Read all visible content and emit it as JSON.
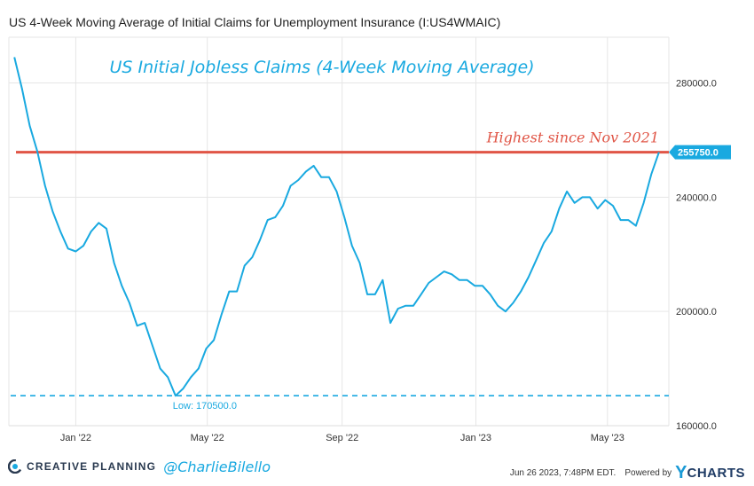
{
  "header": {
    "title": "US 4-Week Moving Average of Initial Claims for Unemployment Insurance (I:US4WMAIC)"
  },
  "annotations": {
    "chart_title": "US Initial Jobless Claims (4-Week Moving Average)",
    "highest_label": "Highest since Nov 2021",
    "current_value_badge": "255750.0",
    "low_label": "Low: 170500.0"
  },
  "footer": {
    "brand_name": "CREATIVE PLANNING",
    "handle": "@CharlieBilello",
    "timestamp": "Jun 26 2023, 7:48PM EDT.",
    "powered_by": "Powered by",
    "ycharts_y": "Y",
    "ycharts_rest": "CHARTS"
  },
  "colors": {
    "series": "#19a9e0",
    "highlight_line": "#e05546",
    "badge": "#19a9e0",
    "grid": "#e6e6e6",
    "axis_text": "#333333"
  },
  "chart_data": {
    "type": "line",
    "title": "US Initial Jobless Claims (4-Week Moving Average)",
    "x_tick_labels": [
      "Jan '22",
      "May '22",
      "Sep '22",
      "Jan '23",
      "May '23"
    ],
    "x_tick_dates": [
      "2022-01-01",
      "2022-05-01",
      "2022-09-01",
      "2023-01-01",
      "2023-05-01"
    ],
    "y_ticks": [
      160000,
      200000,
      240000,
      280000
    ],
    "y_tick_labels": [
      "160000.0",
      "200000.0",
      "240000.0",
      "280000.0"
    ],
    "xlim": [
      "2021-11-01",
      "2023-06-26"
    ],
    "ylim": [
      160000,
      296000
    ],
    "grid": true,
    "reference_lines": [
      {
        "label": "Highest since Nov 2021",
        "value": 255750,
        "style": "solid"
      },
      {
        "label": "Low: 170500.0",
        "value": 170500,
        "style": "dashed"
      }
    ],
    "series": [
      {
        "x": [
          "2021-11-06",
          "2021-11-13",
          "2021-11-20",
          "2021-11-27",
          "2021-12-04",
          "2021-12-11",
          "2021-12-18",
          "2021-12-25",
          "2022-01-01",
          "2022-01-08",
          "2022-01-15",
          "2022-01-22",
          "2022-01-29",
          "2022-02-05",
          "2022-02-12",
          "2022-02-19",
          "2022-02-26",
          "2022-03-05",
          "2022-03-12",
          "2022-03-19",
          "2022-03-26",
          "2022-04-02",
          "2022-04-09",
          "2022-04-16",
          "2022-04-23",
          "2022-04-30",
          "2022-05-07",
          "2022-05-14",
          "2022-05-21",
          "2022-05-28",
          "2022-06-04",
          "2022-06-11",
          "2022-06-18",
          "2022-06-25",
          "2022-07-02",
          "2022-07-09",
          "2022-07-16",
          "2022-07-23",
          "2022-07-30",
          "2022-08-06",
          "2022-08-13",
          "2022-08-20",
          "2022-08-27",
          "2022-09-03",
          "2022-09-10",
          "2022-09-17",
          "2022-09-24",
          "2022-10-01",
          "2022-10-08",
          "2022-10-15",
          "2022-10-22",
          "2022-10-29",
          "2022-11-05",
          "2022-11-12",
          "2022-11-19",
          "2022-11-26",
          "2022-12-03",
          "2022-12-10",
          "2022-12-17",
          "2022-12-24",
          "2022-12-31",
          "2023-01-07",
          "2023-01-14",
          "2023-01-21",
          "2023-01-28",
          "2023-02-04",
          "2023-02-11",
          "2023-02-18",
          "2023-02-25",
          "2023-03-04",
          "2023-03-11",
          "2023-03-18",
          "2023-03-25",
          "2023-04-01",
          "2023-04-08",
          "2023-04-15",
          "2023-04-22",
          "2023-04-29",
          "2023-05-06",
          "2023-05-13",
          "2023-05-20",
          "2023-05-27",
          "2023-06-03",
          "2023-06-10",
          "2023-06-17"
        ],
        "y": [
          289000,
          278000,
          265000,
          256000,
          244000,
          235000,
          228000,
          222000,
          221000,
          223000,
          228000,
          231000,
          229000,
          217000,
          209000,
          203000,
          195000,
          196000,
          188000,
          180000,
          177000,
          170500,
          173000,
          177000,
          180000,
          187000,
          190000,
          199000,
          207000,
          207000,
          216000,
          219000,
          225000,
          232000,
          233000,
          237000,
          244000,
          246000,
          249000,
          251000,
          247000,
          247000,
          242000,
          233000,
          223000,
          217000,
          206000,
          206000,
          211000,
          196000,
          201000,
          202000,
          202000,
          206000,
          210000,
          212000,
          214000,
          213000,
          211000,
          211000,
          209000,
          209000,
          206000,
          202000,
          200000,
          203000,
          207000,
          212000,
          218000,
          224000,
          228000,
          236000,
          242000,
          238000,
          240000,
          240000,
          236000,
          239000,
          237000,
          232000,
          232000,
          230000,
          238000,
          248000,
          255750
        ]
      }
    ]
  }
}
